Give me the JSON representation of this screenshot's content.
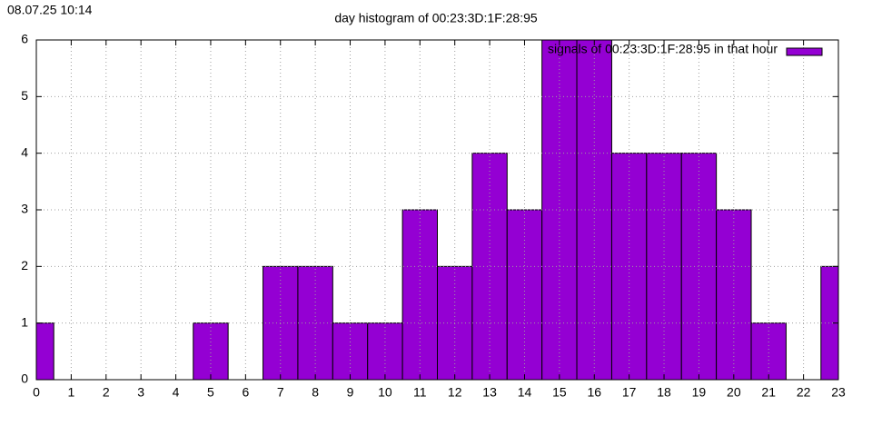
{
  "chart_data": {
    "type": "bar",
    "title": "day histogram of 00:23:3D:1F:28:95",
    "timestamp": "08.07.25 10:14",
    "x": [
      0,
      1,
      2,
      3,
      4,
      5,
      6,
      7,
      8,
      9,
      10,
      11,
      12,
      13,
      14,
      15,
      16,
      17,
      18,
      19,
      20,
      21,
      22,
      23
    ],
    "series": [
      {
        "name": "signals of 00:23:3D:1F:28:95 in that hour",
        "color": "#9400d3",
        "values": [
          1,
          0,
          0,
          0,
          0,
          1,
          0,
          2,
          2,
          1,
          1,
          3,
          2,
          4,
          3,
          6,
          6,
          4,
          4,
          4,
          3,
          1,
          0,
          2
        ]
      }
    ],
    "xlim": [
      0,
      23
    ],
    "xticks": [
      0,
      1,
      2,
      3,
      4,
      5,
      6,
      7,
      8,
      9,
      10,
      11,
      12,
      13,
      14,
      15,
      16,
      17,
      18,
      19,
      20,
      21,
      22,
      23
    ],
    "ylim": [
      0,
      6
    ],
    "yticks": [
      0,
      1,
      2,
      3,
      4,
      5,
      6
    ],
    "grid": true,
    "legend": "top-right"
  }
}
